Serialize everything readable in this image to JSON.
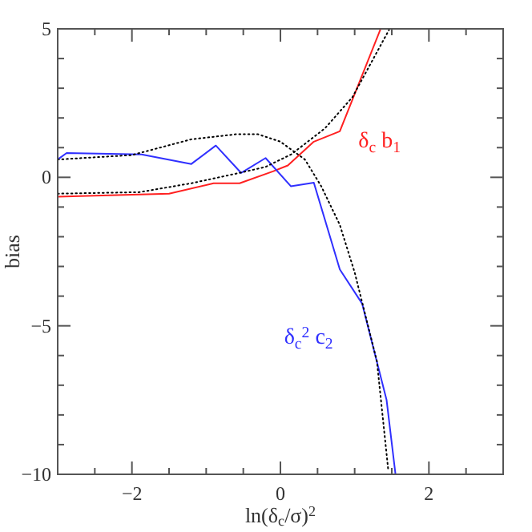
{
  "chart_data": {
    "type": "line",
    "xlabel": "ln(δ$_{c}$/σ)$^{2}$",
    "ylabel": "bias",
    "xlim": [
      -3,
      3
    ],
    "ylim": [
      -10,
      5
    ],
    "xticks": [
      {
        "value": -3,
        "label": null
      },
      {
        "value": -2.5,
        "label": null
      },
      -2,
      {
        "value": -1.5,
        "label": null
      },
      {
        "value": -1,
        "label": null
      },
      {
        "value": -0.5,
        "label": null
      },
      0,
      {
        "value": 0.5,
        "label": null
      },
      {
        "value": 1,
        "label": null
      },
      {
        "value": 1.5,
        "label": null
      },
      2,
      {
        "value": 2.5,
        "label": null
      },
      {
        "value": 3,
        "label": null
      }
    ],
    "yticks": [
      -10,
      {
        "value": -9,
        "label": null
      },
      {
        "value": -8,
        "label": null
      },
      {
        "value": -7,
        "label": null
      },
      {
        "value": -6,
        "label": null
      },
      -5,
      {
        "value": -4,
        "label": null
      },
      {
        "value": -3,
        "label": null
      },
      {
        "value": -2,
        "label": null
      },
      {
        "value": -1,
        "label": null
      },
      0,
      {
        "value": 1,
        "label": null
      },
      {
        "value": 2,
        "label": null
      },
      {
        "value": 3,
        "label": null
      },
      {
        "value": 4,
        "label": null
      },
      5
    ],
    "grid": false,
    "marker": "none",
    "series": [
      {
        "name": "δ$_{c}$ b$_{1}$",
        "color": "#ff2020",
        "line_style": "solid",
        "x": [
          -3,
          -1.5,
          -0.9,
          -0.55,
          -0.1,
          0.1,
          0.45,
          0.8,
          1.35
        ],
        "values": [
          -0.65,
          -0.55,
          -0.2,
          -0.2,
          0.2,
          0.4,
          1.2,
          1.55,
          5
        ]
      },
      {
        "name": "δ$_{c}$$^{2}$ c$_{2}$",
        "color": "#3030ff",
        "line_style": "solid",
        "x": [
          -3,
          -2.88,
          -1.87,
          -1.2,
          -0.87,
          -0.53,
          -0.2,
          0.14,
          0.45,
          0.8,
          1.1,
          1.43,
          1.55
        ],
        "values": [
          0.6,
          0.82,
          0.77,
          0.45,
          1.07,
          0.15,
          0.65,
          -0.3,
          -0.18,
          -3.1,
          -4.25,
          -7.5,
          -10
        ]
      },
      {
        "color": "#000000",
        "line_style": "dotted",
        "x": [
          -3,
          -2,
          -1.2,
          -0.6,
          -0.3,
          0,
          0.33,
          0.55,
          0.8,
          1.0,
          1.3,
          1.45
        ],
        "values": [
          0.6,
          0.75,
          1.28,
          1.45,
          1.45,
          1.2,
          0.6,
          -0.3,
          -1.6,
          -3.2,
          -6.2,
          -9.8
        ]
      },
      {
        "color": "#000000",
        "line_style": "dotted",
        "x": [
          -3,
          -1.9,
          -1.2,
          -0.55,
          -0.2,
          0.15,
          0.6,
          0.97,
          1.47
        ],
        "values": [
          -0.55,
          -0.5,
          -0.2,
          0.15,
          0.35,
          0.78,
          1.65,
          2.7,
          5
        ]
      }
    ]
  }
}
